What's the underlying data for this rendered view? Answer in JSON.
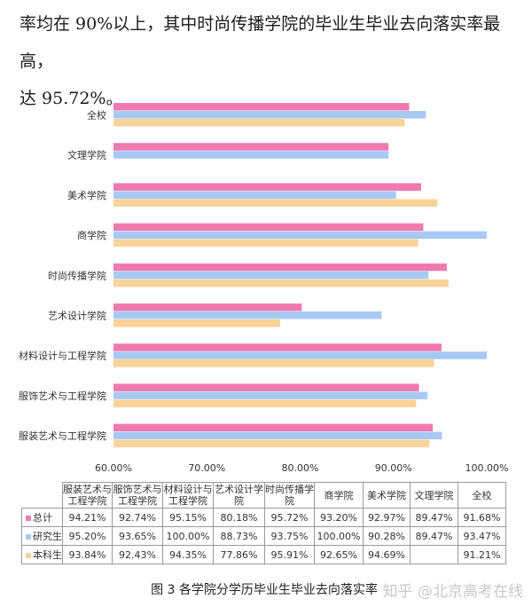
{
  "paragraph": {
    "line1": "率均在 90%以上，其中时尚传播学院的毕业生毕业去向落实率最高，",
    "line2": "达 95.72%。"
  },
  "chart_data": {
    "type": "bar",
    "orientation": "horizontal",
    "categories": [
      "全校",
      "文理学院",
      "美术学院",
      "商学院",
      "时尚传播学院",
      "艺术设计学院",
      "材料设计与工程学院",
      "服饰艺术与工程学院",
      "服装艺术与工程学院"
    ],
    "series": [
      {
        "name": "总计",
        "color": "#f07ab0",
        "values": [
          91.68,
          89.47,
          92.97,
          93.2,
          95.72,
          80.18,
          95.15,
          92.74,
          94.21
        ]
      },
      {
        "name": "研究生",
        "color": "#a9c9f5",
        "values": [
          93.47,
          89.47,
          90.28,
          100.0,
          93.75,
          88.73,
          100.0,
          93.65,
          95.2
        ]
      },
      {
        "name": "本科生",
        "color": "#fad39a",
        "values": [
          91.21,
          null,
          94.69,
          92.65,
          95.91,
          77.86,
          94.35,
          92.43,
          93.84
        ]
      }
    ],
    "xlim": [
      60,
      100
    ],
    "xticks": [
      "60.00%",
      "70.00%",
      "80.00%",
      "90.00%",
      "100.00%"
    ],
    "grid": false,
    "legend": "table-left"
  },
  "table": {
    "columns": [
      "服装艺术与工程学院",
      "服饰艺术与工程学院",
      "材料设计与工程学院",
      "艺术设计学院",
      "时尚传播学院",
      "商学院",
      "美术学院",
      "文理学院",
      "全校"
    ],
    "rows": [
      {
        "label": "总计",
        "color": "#f07ab0",
        "cells": [
          "94.21%",
          "92.74%",
          "95.15%",
          "80.18%",
          "95.72%",
          "93.20%",
          "92.97%",
          "89.47%",
          "91.68%"
        ]
      },
      {
        "label": "研究生",
        "color": "#a9c9f5",
        "cells": [
          "95.20%",
          "93.65%",
          "100.00%",
          "88.73%",
          "93.75%",
          "100.00%",
          "90.28%",
          "89.47%",
          "93.47%"
        ]
      },
      {
        "label": "本科生",
        "color": "#fad39a",
        "cells": [
          "93.84%",
          "92.43%",
          "94.35%",
          "77.86%",
          "95.91%",
          "92.65%",
          "94.69%",
          "",
          "91.21%"
        ]
      }
    ]
  },
  "caption": "图 3  各学院分学历毕业生毕业去向落实率",
  "watermark": "知乎 @北京高考在线"
}
